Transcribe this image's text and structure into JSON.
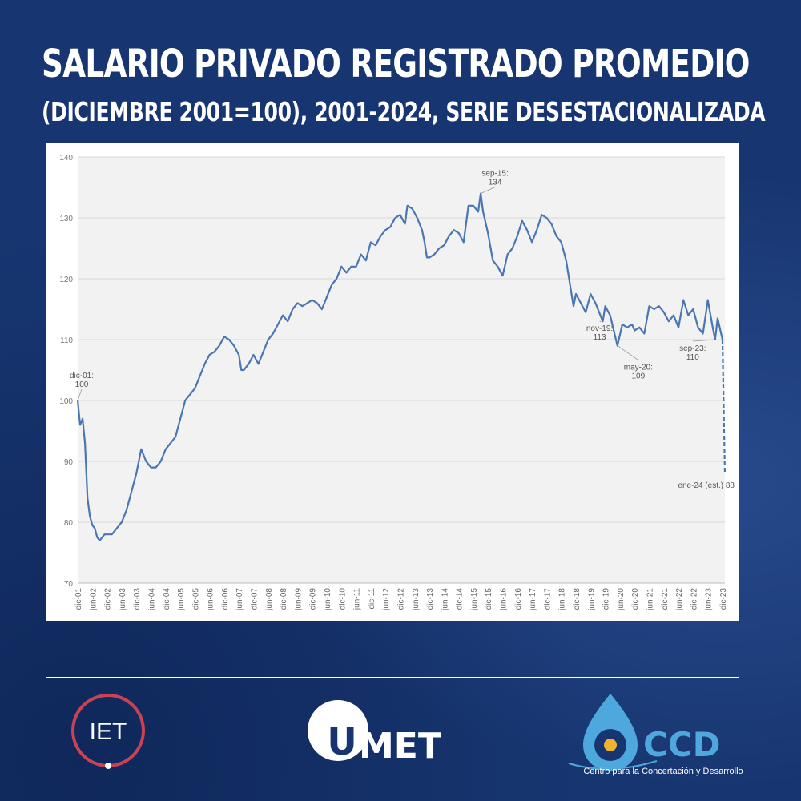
{
  "header": {
    "title": "SALARIO PRIVADO REGISTRADO PROMEDIO",
    "subtitle": "(DICIEMBRE 2001=100), 2001-2024, SERIE DESESTACIONALIZADA"
  },
  "chart_data": {
    "type": "line",
    "title": "",
    "xlabel": "",
    "ylabel": "",
    "ylim": [
      70,
      140
    ],
    "yticks": [
      70,
      80,
      90,
      100,
      110,
      120,
      130,
      140
    ],
    "grid": true,
    "series_color": "#4a76b2",
    "xticks": [
      "dic-01",
      "jun-02",
      "dic-02",
      "jun-03",
      "dic-03",
      "jun-04",
      "dic-04",
      "jun-05",
      "dic-05",
      "jun-06",
      "dic-06",
      "jun-07",
      "dic-07",
      "jun-08",
      "dic-08",
      "jun-09",
      "dic-09",
      "jun-10",
      "dic-10",
      "jun-11",
      "dic-11",
      "jun-12",
      "dic-12",
      "jun-13",
      "dic-13",
      "jun-14",
      "dic-14",
      "jun-15",
      "dic-15",
      "jun-16",
      "dic-16",
      "jun-17",
      "dic-17",
      "jun-18",
      "dic-18",
      "jun-19",
      "dic-19",
      "jun-20",
      "dic-20",
      "jun-21",
      "dic-21",
      "jun-22",
      "dic-22",
      "jun-23",
      "dic-23"
    ],
    "series": [
      {
        "points": [
          {
            "x": "dic-01",
            "y": 100
          },
          {
            "x": "ene-02",
            "y": 96
          },
          {
            "x": "feb-02",
            "y": 97
          },
          {
            "x": "mar-02",
            "y": 93
          },
          {
            "x": "abr-02",
            "y": 84
          },
          {
            "x": "may-02",
            "y": 81
          },
          {
            "x": "jun-02",
            "y": 79.5
          },
          {
            "x": "jul-02",
            "y": 79
          },
          {
            "x": "ago-02",
            "y": 77.5
          },
          {
            "x": "sep-02",
            "y": 77
          },
          {
            "x": "oct-02",
            "y": 77.5
          },
          {
            "x": "nov-02",
            "y": 78
          },
          {
            "x": "dic-02",
            "y": 78
          },
          {
            "x": "feb-03",
            "y": 78
          },
          {
            "x": "abr-03",
            "y": 79
          },
          {
            "x": "jun-03",
            "y": 80
          },
          {
            "x": "ago-03",
            "y": 82
          },
          {
            "x": "oct-03",
            "y": 85
          },
          {
            "x": "dic-03",
            "y": 88
          },
          {
            "x": "feb-04",
            "y": 92
          },
          {
            "x": "abr-04",
            "y": 90
          },
          {
            "x": "jun-04",
            "y": 89
          },
          {
            "x": "ago-04",
            "y": 89
          },
          {
            "x": "oct-04",
            "y": 90
          },
          {
            "x": "dic-04",
            "y": 92
          },
          {
            "x": "feb-05",
            "y": 93
          },
          {
            "x": "abr-05",
            "y": 94
          },
          {
            "x": "jun-05",
            "y": 97
          },
          {
            "x": "ago-05",
            "y": 100
          },
          {
            "x": "oct-05",
            "y": 101
          },
          {
            "x": "dic-05",
            "y": 102
          },
          {
            "x": "feb-06",
            "y": 104
          },
          {
            "x": "abr-06",
            "y": 106
          },
          {
            "x": "jun-06",
            "y": 107.5
          },
          {
            "x": "ago-06",
            "y": 108
          },
          {
            "x": "oct-06",
            "y": 109
          },
          {
            "x": "dic-06",
            "y": 110.5
          },
          {
            "x": "feb-07",
            "y": 110
          },
          {
            "x": "abr-07",
            "y": 109
          },
          {
            "x": "jun-07",
            "y": 107.5
          },
          {
            "x": "jul-07",
            "y": 105
          },
          {
            "x": "ago-07",
            "y": 105
          },
          {
            "x": "oct-07",
            "y": 106
          },
          {
            "x": "dic-07",
            "y": 107.5
          },
          {
            "x": "feb-08",
            "y": 106
          },
          {
            "x": "abr-08",
            "y": 108
          },
          {
            "x": "jun-08",
            "y": 110
          },
          {
            "x": "ago-08",
            "y": 111
          },
          {
            "x": "oct-08",
            "y": 112.5
          },
          {
            "x": "dic-08",
            "y": 114
          },
          {
            "x": "feb-09",
            "y": 113
          },
          {
            "x": "abr-09",
            "y": 115
          },
          {
            "x": "jun-09",
            "y": 116
          },
          {
            "x": "ago-09",
            "y": 115.5
          },
          {
            "x": "oct-09",
            "y": 116
          },
          {
            "x": "dic-09",
            "y": 116.5
          },
          {
            "x": "feb-10",
            "y": 116
          },
          {
            "x": "abr-10",
            "y": 115
          },
          {
            "x": "jun-10",
            "y": 117
          },
          {
            "x": "ago-10",
            "y": 119
          },
          {
            "x": "oct-10",
            "y": 120
          },
          {
            "x": "dic-10",
            "y": 122
          },
          {
            "x": "feb-11",
            "y": 121
          },
          {
            "x": "abr-11",
            "y": 122
          },
          {
            "x": "jun-11",
            "y": 122
          },
          {
            "x": "ago-11",
            "y": 124
          },
          {
            "x": "oct-11",
            "y": 123
          },
          {
            "x": "dic-11",
            "y": 126
          },
          {
            "x": "feb-12",
            "y": 125.5
          },
          {
            "x": "abr-12",
            "y": 127
          },
          {
            "x": "jun-12",
            "y": 128
          },
          {
            "x": "ago-12",
            "y": 128.5
          },
          {
            "x": "oct-12",
            "y": 130
          },
          {
            "x": "dic-12",
            "y": 130.5
          },
          {
            "x": "feb-13",
            "y": 129
          },
          {
            "x": "mar-13",
            "y": 132
          },
          {
            "x": "may-13",
            "y": 131.5
          },
          {
            "x": "jul-13",
            "y": 130
          },
          {
            "x": "sep-13",
            "y": 128
          },
          {
            "x": "oct-13",
            "y": 126
          },
          {
            "x": "nov-13",
            "y": 123.5
          },
          {
            "x": "dic-13",
            "y": 123.5
          },
          {
            "x": "feb-14",
            "y": 124
          },
          {
            "x": "abr-14",
            "y": 125
          },
          {
            "x": "jun-14",
            "y": 125.5
          },
          {
            "x": "ago-14",
            "y": 127
          },
          {
            "x": "oct-14",
            "y": 128
          },
          {
            "x": "dic-14",
            "y": 127.5
          },
          {
            "x": "feb-15",
            "y": 126
          },
          {
            "x": "abr-15",
            "y": 132
          },
          {
            "x": "jun-15",
            "y": 132
          },
          {
            "x": "ago-15",
            "y": 131
          },
          {
            "x": "sep-15",
            "y": 134
          },
          {
            "x": "oct-15",
            "y": 131
          },
          {
            "x": "dic-15",
            "y": 127.5
          },
          {
            "x": "feb-16",
            "y": 123
          },
          {
            "x": "abr-16",
            "y": 122
          },
          {
            "x": "jun-16",
            "y": 120.5
          },
          {
            "x": "ago-16",
            "y": 124
          },
          {
            "x": "oct-16",
            "y": 125
          },
          {
            "x": "dic-16",
            "y": 127
          },
          {
            "x": "feb-17",
            "y": 129.5
          },
          {
            "x": "abr-17",
            "y": 128
          },
          {
            "x": "jun-17",
            "y": 126
          },
          {
            "x": "ago-17",
            "y": 128
          },
          {
            "x": "oct-17",
            "y": 130.5
          },
          {
            "x": "dic-17",
            "y": 130
          },
          {
            "x": "feb-18",
            "y": 129
          },
          {
            "x": "abr-18",
            "y": 127
          },
          {
            "x": "jun-18",
            "y": 126
          },
          {
            "x": "ago-18",
            "y": 123
          },
          {
            "x": "oct-18",
            "y": 118
          },
          {
            "x": "nov-18",
            "y": 115.5
          },
          {
            "x": "dic-18",
            "y": 117.5
          },
          {
            "x": "feb-19",
            "y": 116
          },
          {
            "x": "abr-19",
            "y": 114.5
          },
          {
            "x": "jun-19",
            "y": 117.5
          },
          {
            "x": "ago-19",
            "y": 116
          },
          {
            "x": "oct-19",
            "y": 114
          },
          {
            "x": "nov-19",
            "y": 113
          },
          {
            "x": "dic-19",
            "y": 115.5
          },
          {
            "x": "feb-20",
            "y": 114
          },
          {
            "x": "may-20",
            "y": 109
          },
          {
            "x": "jul-20",
            "y": 112.5
          },
          {
            "x": "sep-20",
            "y": 112
          },
          {
            "x": "nov-20",
            "y": 112.5
          },
          {
            "x": "dic-20",
            "y": 111.5
          },
          {
            "x": "feb-21",
            "y": 112
          },
          {
            "x": "abr-21",
            "y": 111
          },
          {
            "x": "jun-21",
            "y": 115.5
          },
          {
            "x": "ago-21",
            "y": 115
          },
          {
            "x": "oct-21",
            "y": 115.5
          },
          {
            "x": "dic-21",
            "y": 114.5
          },
          {
            "x": "feb-22",
            "y": 113
          },
          {
            "x": "abr-22",
            "y": 114
          },
          {
            "x": "jun-22",
            "y": 112
          },
          {
            "x": "ago-22",
            "y": 116.5
          },
          {
            "x": "oct-22",
            "y": 114
          },
          {
            "x": "dic-22",
            "y": 115
          },
          {
            "x": "feb-23",
            "y": 112
          },
          {
            "x": "abr-23",
            "y": 111
          },
          {
            "x": "jun-23",
            "y": 116.5
          },
          {
            "x": "ago-23",
            "y": 112
          },
          {
            "x": "sep-23",
            "y": 110
          },
          {
            "x": "oct-23",
            "y": 113.5
          },
          {
            "x": "dic-23",
            "y": 110
          }
        ],
        "estimate": [
          {
            "x": "dic-23",
            "y": 110
          },
          {
            "x": "ene-24",
            "y": 88
          }
        ]
      }
    ],
    "annotations": [
      {
        "text": "dic-01:",
        "value": "100",
        "x": "dic-01",
        "y": 100
      },
      {
        "text": "sep-15:",
        "value": "134",
        "x": "sep-15",
        "y": 134
      },
      {
        "text": "nov-19:",
        "value": "113",
        "x": "nov-19",
        "y": 113
      },
      {
        "text": "may-20:",
        "value": "109",
        "x": "may-20",
        "y": 109
      },
      {
        "text": "sep-23:",
        "value": "110",
        "x": "sep-23",
        "y": 110
      },
      {
        "text": "ene-24 (est.) 88",
        "value": "",
        "x": "ene-24",
        "y": 88
      }
    ]
  },
  "logos": {
    "iet": "IET",
    "umet_initial": "U",
    "umet_rest": "MET",
    "ccd": "CCD",
    "ccd_sub": "Centro para la Concertación y Desarrollo"
  },
  "colors": {
    "background": "#173671",
    "line": "#4a76b2",
    "iet_ring": "#c94354",
    "ccd_blue": "#4fa8dd",
    "ccd_dot": "#f0b331"
  }
}
